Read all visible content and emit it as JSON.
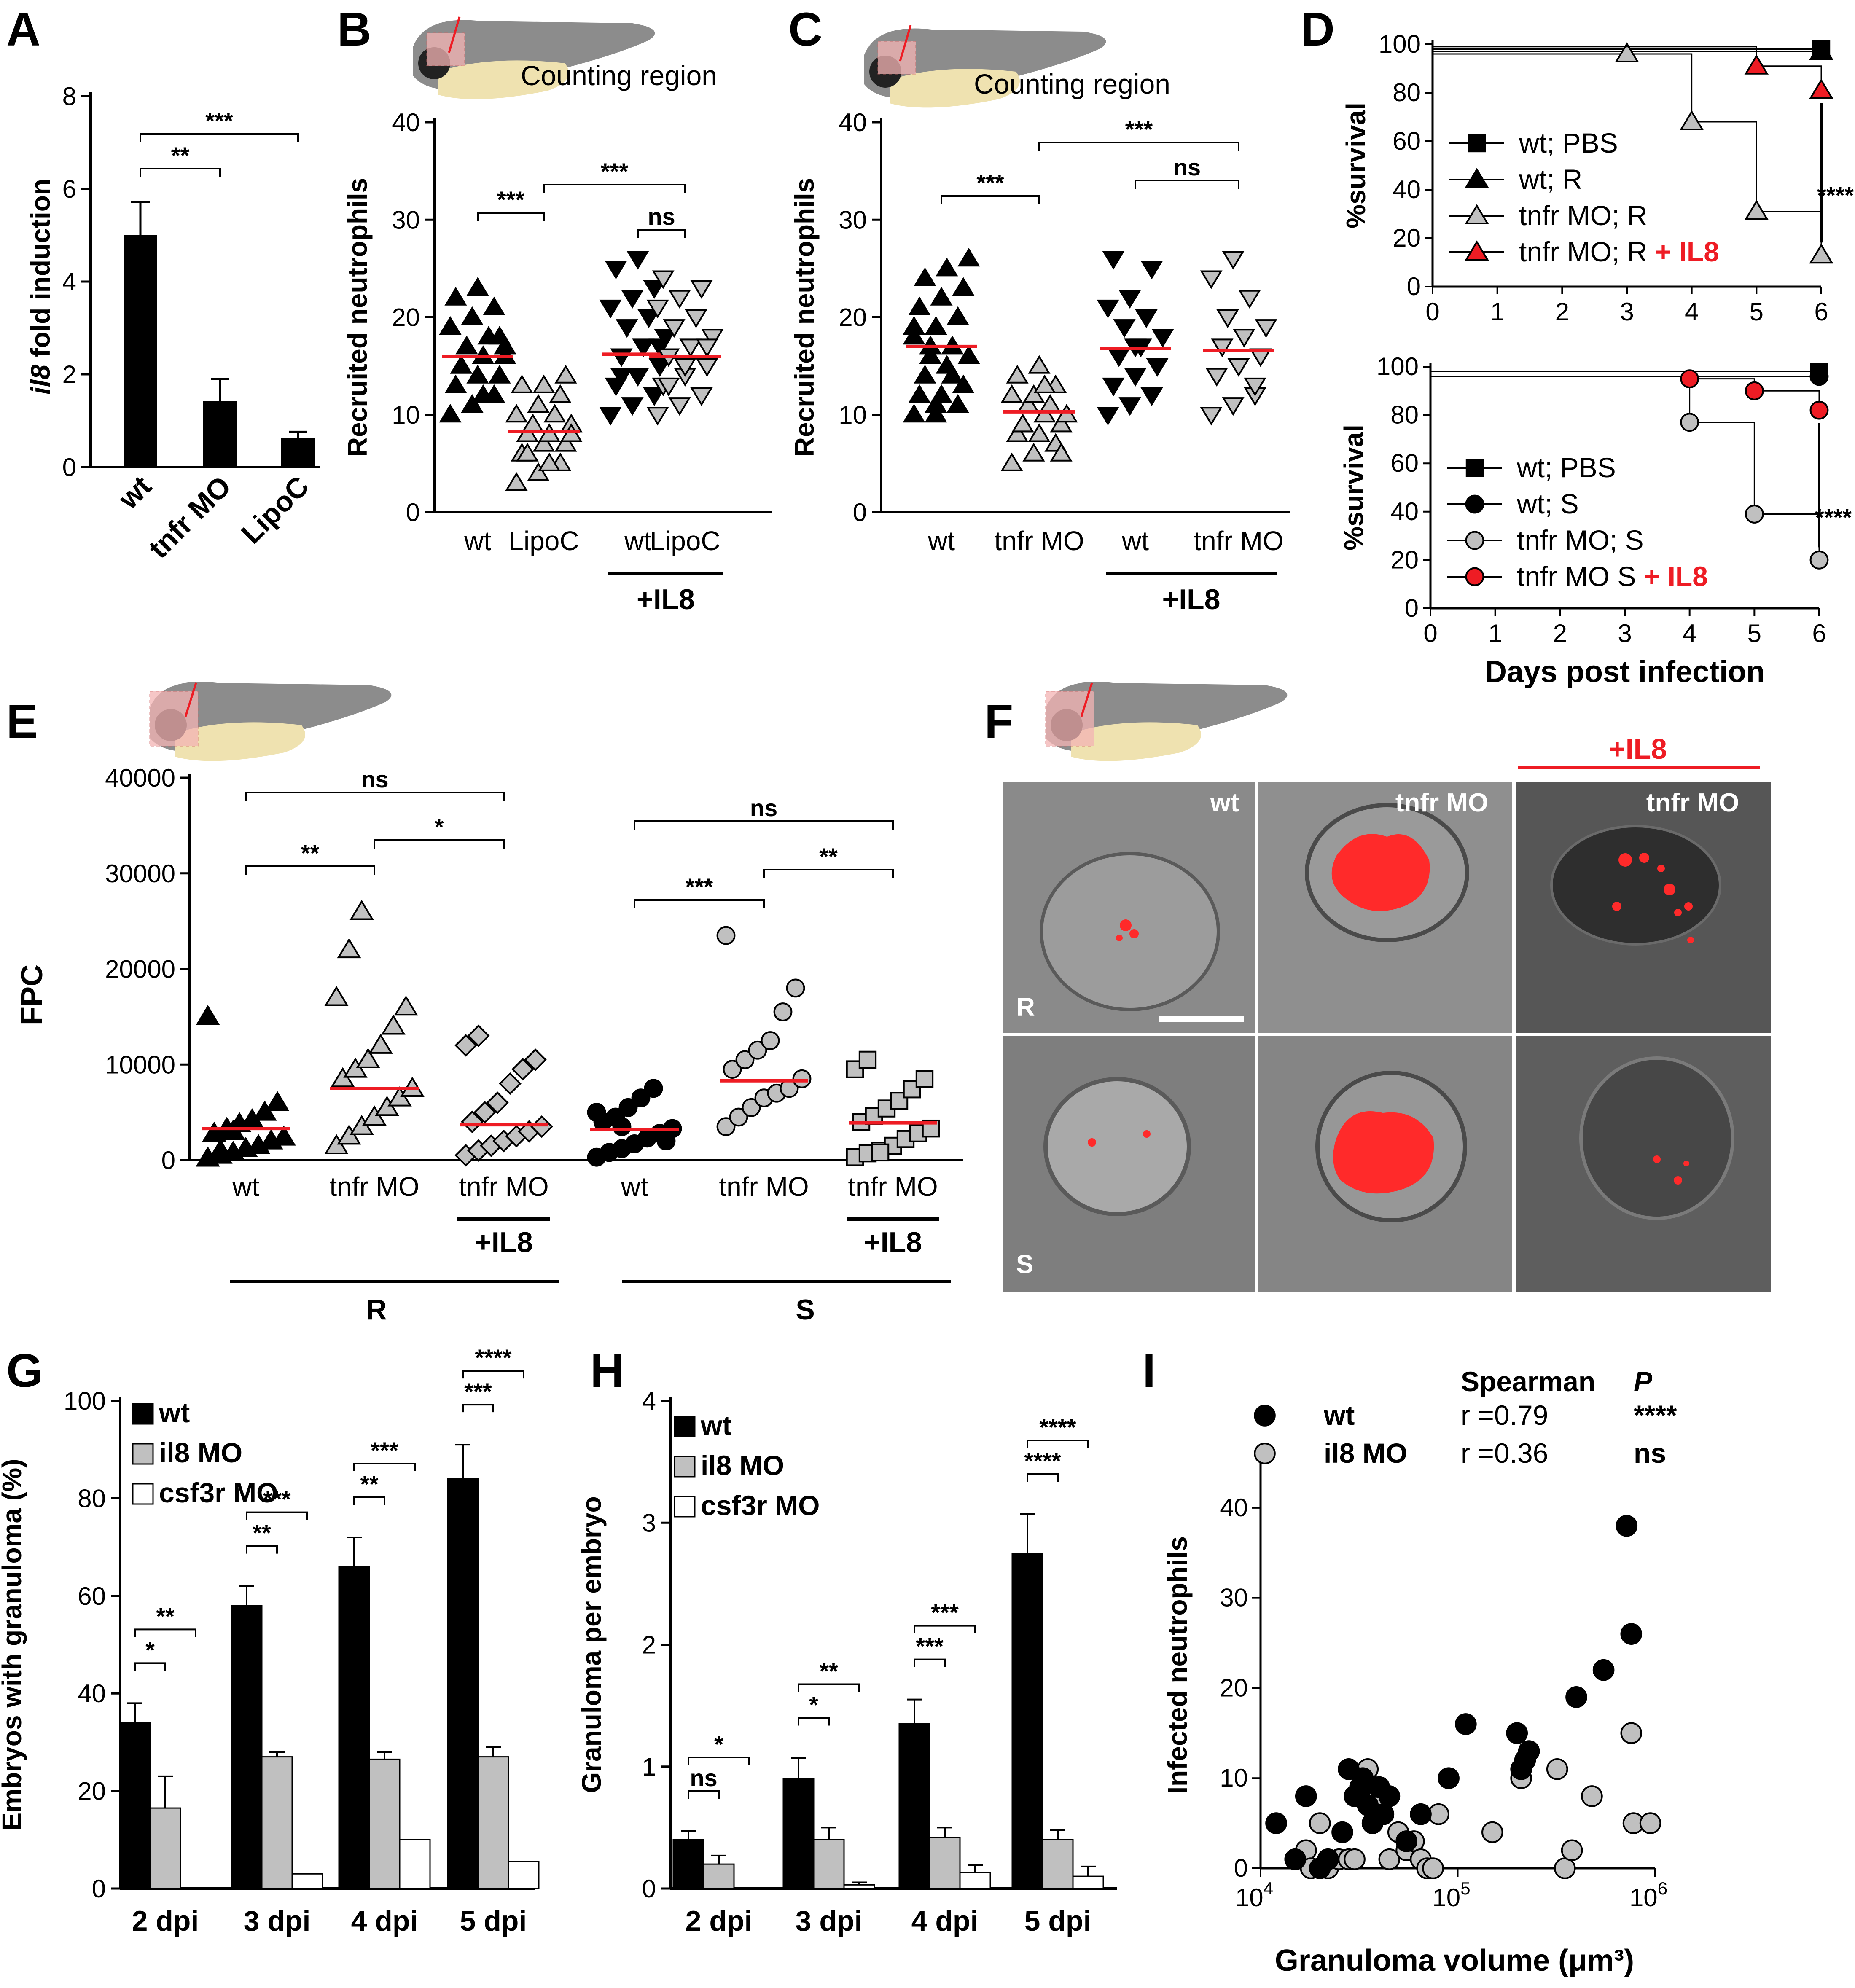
{
  "colors": {
    "red": "#ee1c24",
    "gray": "#c0c0c0",
    "black": "#000000",
    "white": "#ffffff",
    "embryo_body": "#9a9a9a",
    "yolk": "#efe2b0",
    "region": "#f4b4b4"
  },
  "chart_data": [
    {
      "panel": "A",
      "type": "bar",
      "ylabel_italic": "il8",
      "ylabel": " fold induction",
      "yticks": [
        "0",
        "2",
        "4",
        "6",
        "8"
      ],
      "ylim": [
        0,
        8
      ],
      "categories": [
        "wt",
        "tnfr MO",
        "LipoC"
      ],
      "values": [
        5.0,
        1.42,
        0.62
      ],
      "errors": [
        0.72,
        0.48,
        0.14
      ],
      "sig": [
        {
          "from": 0,
          "to": 1,
          "label": "**"
        },
        {
          "from": 0,
          "to": 2,
          "label": "***"
        }
      ]
    },
    {
      "panel": "B",
      "type": "scatter",
      "title": "Counting region",
      "ylabel": "Recruited neutrophils",
      "yticks": [
        "0",
        "10",
        "20",
        "30",
        "40"
      ],
      "ylim": [
        0,
        40
      ],
      "categories": [
        "wt",
        "LipoC",
        "wt",
        "LipoC"
      ],
      "group_label": "+IL8",
      "means": [
        16,
        8.3,
        16.2,
        16
      ],
      "markers": [
        "tri-up-black",
        "tri-up-gray",
        "tri-down-black",
        "tri-down-gray"
      ],
      "points": [
        [
          10,
          11,
          12,
          13,
          14,
          14,
          15,
          16,
          16,
          17,
          18,
          19,
          20,
          21,
          22,
          23,
          18,
          15,
          12,
          17
        ],
        [
          3,
          4,
          5,
          6,
          7,
          7,
          8,
          8,
          9,
          9,
          10,
          10,
          11,
          12,
          13,
          13,
          14,
          6,
          5,
          8
        ],
        [
          10,
          11,
          12,
          13,
          14,
          15,
          16,
          17,
          18,
          19,
          20,
          21,
          22,
          23,
          25,
          26,
          17,
          14
        ],
        [
          10,
          11,
          12,
          13,
          14,
          15,
          16,
          17,
          18,
          19,
          20,
          21,
          22,
          23,
          24,
          15,
          17,
          13
        ]
      ],
      "sig": [
        {
          "from": 0,
          "to": 1,
          "label": "***"
        },
        {
          "from": 1,
          "to": 3,
          "label": "***"
        },
        {
          "from": 2,
          "to": 3,
          "label": "ns"
        }
      ]
    },
    {
      "panel": "C",
      "type": "scatter",
      "title": "Counting region",
      "ylabel": "Recruited neutrophils",
      "yticks": [
        "0",
        "10",
        "20",
        "30",
        "40"
      ],
      "ylim": [
        0,
        40
      ],
      "categories": [
        "wt",
        "tnfr MO",
        "wt",
        "tnfr MO"
      ],
      "group_label": "+IL8",
      "means": [
        17,
        10.3,
        16.8,
        16.6
      ],
      "markers": [
        "tri-up-black",
        "tri-up-gray",
        "tri-down-black",
        "tri-down-gray"
      ],
      "points": [
        [
          10,
          10,
          11,
          12,
          12,
          13,
          14,
          15,
          16,
          17,
          17,
          18,
          19,
          20,
          21,
          22,
          23,
          24,
          25,
          26,
          16,
          14,
          19,
          11
        ],
        [
          5,
          6,
          7,
          8,
          8,
          9,
          9,
          10,
          10,
          11,
          11,
          12,
          12,
          13,
          14,
          15,
          6,
          9,
          13
        ],
        [
          10,
          11,
          12,
          13,
          14,
          15,
          16,
          17,
          18,
          19,
          20,
          21,
          22,
          25,
          26,
          17
        ],
        [
          10,
          11,
          12,
          14,
          15,
          16,
          17,
          18,
          19,
          20,
          22,
          24,
          26,
          13
        ]
      ],
      "sig": [
        {
          "from": 0,
          "to": 1,
          "label": "***"
        },
        {
          "from": 1,
          "to": 3,
          "label": "***"
        },
        {
          "from": 2,
          "to": 3,
          "label": "ns"
        }
      ]
    },
    {
      "panel": "D-top",
      "type": "line",
      "ylabel": "%survival",
      "xticks": [
        "0",
        "1",
        "2",
        "3",
        "4",
        "5",
        "6"
      ],
      "yticks": [
        "0",
        "20",
        "40",
        "60",
        "80",
        "100"
      ],
      "xlim": [
        0,
        6
      ],
      "ylim": [
        0,
        100
      ],
      "series": [
        {
          "name": "wt; PBS",
          "marker": "square-black",
          "x": [
            0,
            6
          ],
          "y": [
            98,
            98
          ]
        },
        {
          "name": "wt; R",
          "marker": "tri-black",
          "x": [
            0,
            6
          ],
          "y": [
            97,
            97
          ]
        },
        {
          "name": "tnfr MO; R",
          "marker": "tri-gray",
          "x": [
            0,
            3,
            4,
            5,
            6
          ],
          "y": [
            96,
            96,
            68,
            31,
            13
          ]
        },
        {
          "name": "tnfr MO; R",
          "name_suffix": " + IL8",
          "marker": "tri-red",
          "x": [
            0,
            5,
            6
          ],
          "y": [
            99,
            91,
            81
          ]
        }
      ],
      "sig": "****"
    },
    {
      "panel": "D-bottom",
      "type": "line",
      "ylabel": "%survival",
      "xlabel": "Days post infection",
      "xticks": [
        "0",
        "1",
        "2",
        "3",
        "4",
        "5",
        "6"
      ],
      "yticks": [
        "0",
        "20",
        "40",
        "60",
        "80",
        "100"
      ],
      "xlim": [
        0,
        6
      ],
      "ylim": [
        0,
        100
      ],
      "series": [
        {
          "name": "wt; PBS",
          "marker": "square-black",
          "x": [
            0,
            6
          ],
          "y": [
            98,
            98
          ]
        },
        {
          "name": "wt; S",
          "marker": "circle-black",
          "x": [
            0,
            6
          ],
          "y": [
            96,
            96
          ]
        },
        {
          "name": "tnfr MO; S",
          "marker": "circle-gray",
          "x": [
            0,
            4,
            5,
            6
          ],
          "y": [
            96,
            77,
            39,
            20
          ]
        },
        {
          "name": "tnfr MO S",
          "name_suffix": " + IL8",
          "marker": "circle-red",
          "x": [
            0,
            4,
            5,
            6
          ],
          "y": [
            98,
            95,
            90,
            82
          ]
        }
      ],
      "sig": "****"
    },
    {
      "panel": "E",
      "type": "scatter",
      "ylabel": "FPC",
      "yticks": [
        "0",
        "10000",
        "20000",
        "30000",
        "40000"
      ],
      "ylim": [
        0,
        40000
      ],
      "categories": [
        "wt",
        "tnfr MO",
        "tnfr MO",
        "wt",
        "tnfr MO",
        "tnfr MO"
      ],
      "group_label": "+IL8",
      "groups": [
        "R",
        "S"
      ],
      "means": [
        3300,
        7500,
        3700,
        3200,
        8300,
        3900
      ],
      "markers": [
        "tri-black",
        "tri-gray",
        "diamond-gray",
        "circle-black",
        "circle-gray",
        "square-gray"
      ],
      "points": [
        [
          200,
          500,
          800,
          1200,
          1500,
          2000,
          2400,
          2800,
          3300,
          3800,
          4200,
          5000,
          6000,
          15000,
          1000,
          3000
        ],
        [
          1500,
          2500,
          3500,
          4500,
          5500,
          6500,
          7500,
          8500,
          9500,
          10500,
          12000,
          14000,
          16000,
          17000,
          22000,
          26000
        ],
        [
          500,
          1000,
          1500,
          2000,
          2500,
          3000,
          3500,
          4000,
          5000,
          6000,
          8000,
          9500,
          10500,
          12000,
          13000
        ],
        [
          300,
          800,
          1200,
          1700,
          2300,
          2800,
          3300,
          4000,
          4500,
          5500,
          6500,
          7500,
          2000,
          5000,
          800,
          3500
        ],
        [
          3500,
          4500,
          5500,
          6500,
          7000,
          7500,
          8500,
          9500,
          10500,
          11500,
          12500,
          15500,
          18000,
          23500
        ],
        [
          300,
          700,
          1000,
          1500,
          2200,
          2800,
          3300,
          4000,
          4600,
          5400,
          6200,
          7400,
          8500,
          9500,
          10500,
          800
        ]
      ],
      "sig": [
        {
          "from": 0,
          "to": 1,
          "label": "**"
        },
        {
          "from": 1,
          "to": 2,
          "label": "*"
        },
        {
          "from": 0,
          "to": 2,
          "label": "ns"
        },
        {
          "from": 3,
          "to": 4,
          "label": "***"
        },
        {
          "from": 4,
          "to": 5,
          "label": "**"
        },
        {
          "from": 3,
          "to": 5,
          "label": "ns"
        }
      ]
    },
    {
      "panel": "G",
      "type": "bar",
      "ylabel": "Embryos with granuloma (%)",
      "yticks": [
        "0",
        "20",
        "40",
        "60",
        "80",
        "100"
      ],
      "ylim": [
        0,
        100
      ],
      "categories": [
        "2 dpi",
        "3 dpi",
        "4 dpi",
        "5 dpi"
      ],
      "series": [
        {
          "name": "wt",
          "values": [
            34,
            58,
            66,
            84
          ],
          "errors": [
            4,
            4,
            6,
            7
          ]
        },
        {
          "name": "il8 MO",
          "values": [
            16.5,
            27,
            26.5,
            27
          ],
          "errors": [
            6.5,
            1,
            1.5,
            2
          ]
        },
        {
          "name": "csf3r MO",
          "values": [
            0,
            3,
            10,
            5.5
          ],
          "errors": [
            0,
            0,
            0,
            0
          ]
        }
      ],
      "sig": [
        {
          "cat": 0,
          "labels": [
            "*",
            "**"
          ]
        },
        {
          "cat": 1,
          "labels": [
            "**",
            "***"
          ]
        },
        {
          "cat": 2,
          "labels": [
            "**",
            "***"
          ]
        },
        {
          "cat": 3,
          "labels": [
            "***",
            "****"
          ]
        }
      ]
    },
    {
      "panel": "H",
      "type": "bar",
      "ylabel": "Granuloma per embryo",
      "yticks": [
        "0",
        "1",
        "2",
        "3",
        "4"
      ],
      "ylim": [
        0,
        4
      ],
      "categories": [
        "2 dpi",
        "3 dpi",
        "4 dpi",
        "5 dpi"
      ],
      "series": [
        {
          "name": "wt",
          "values": [
            0.4,
            0.9,
            1.35,
            2.75
          ],
          "errors": [
            0.07,
            0.17,
            0.2,
            0.32
          ]
        },
        {
          "name": "il8 MO",
          "values": [
            0.2,
            0.4,
            0.42,
            0.4
          ],
          "errors": [
            0.07,
            0.1,
            0.08,
            0.08
          ]
        },
        {
          "name": "csf3r MO",
          "values": [
            0,
            0.03,
            0.13,
            0.1
          ],
          "errors": [
            0,
            0.02,
            0.06,
            0.08
          ]
        }
      ],
      "sig": [
        {
          "cat": 0,
          "labels": [
            "ns",
            "*"
          ]
        },
        {
          "cat": 1,
          "labels": [
            "*",
            "**"
          ]
        },
        {
          "cat": 2,
          "labels": [
            "***",
            "***"
          ]
        },
        {
          "cat": 3,
          "labels": [
            "****",
            "****"
          ]
        }
      ]
    },
    {
      "panel": "I",
      "type": "scatter",
      "ylabel": "Infected neutrophils",
      "xlabel": "Granuloma volume (μm³)",
      "xscale": "log",
      "xlim": [
        10000,
        1000000
      ],
      "ylim": [
        0,
        45
      ],
      "xticks": [
        {
          "base": "10",
          "exp": "4"
        },
        {
          "base": "10",
          "exp": "5"
        },
        {
          "base": "10",
          "exp": "6"
        }
      ],
      "yticks": [
        "0",
        "10",
        "20",
        "30",
        "40"
      ],
      "stats_header": {
        "test": "Spearman",
        "p": "P"
      },
      "series": [
        {
          "name": "wt",
          "r": "r =0.79",
          "p": "****",
          "marker": "circle-black",
          "x": [
            12000,
            15000,
            17000,
            20000,
            22000,
            26000,
            28000,
            30000,
            32000,
            33000,
            35000,
            37000,
            40000,
            42000,
            45000,
            55000,
            65000,
            90000,
            110000,
            200000,
            210000,
            220000,
            230000,
            400000,
            550000,
            720000,
            760000
          ],
          "y": [
            5,
            1,
            8,
            0,
            1,
            4,
            11,
            8,
            9,
            10,
            7,
            5,
            9,
            6,
            8,
            3,
            6,
            10,
            16,
            15,
            11,
            12,
            13,
            19,
            22,
            38,
            26
          ]
        },
        {
          "name": "il8 MO",
          "r": "r =0.36",
          "p": "ns",
          "marker": "circle-gray",
          "x": [
            15000,
            17000,
            18000,
            20000,
            22000,
            25000,
            28000,
            30000,
            35000,
            38000,
            40000,
            45000,
            50000,
            55000,
            60000,
            65000,
            70000,
            75000,
            80000,
            150000,
            210000,
            320000,
            350000,
            380000,
            480000,
            760000,
            780000,
            950000
          ],
          "y": [
            1,
            2,
            0,
            5,
            0,
            1,
            1,
            1,
            11,
            9,
            8,
            1,
            4,
            2,
            3,
            1,
            0,
            0,
            6,
            4,
            10,
            11,
            0,
            2,
            8,
            15,
            5,
            5
          ]
        }
      ]
    }
  ],
  "panel_labels": [
    "A",
    "B",
    "C",
    "D",
    "E",
    "F",
    "G",
    "H",
    "I"
  ],
  "panelF": {
    "cols": [
      "wt",
      "tnfr MO",
      "tnfr MO"
    ],
    "rows": [
      "R",
      "S"
    ],
    "header": "+IL8"
  }
}
